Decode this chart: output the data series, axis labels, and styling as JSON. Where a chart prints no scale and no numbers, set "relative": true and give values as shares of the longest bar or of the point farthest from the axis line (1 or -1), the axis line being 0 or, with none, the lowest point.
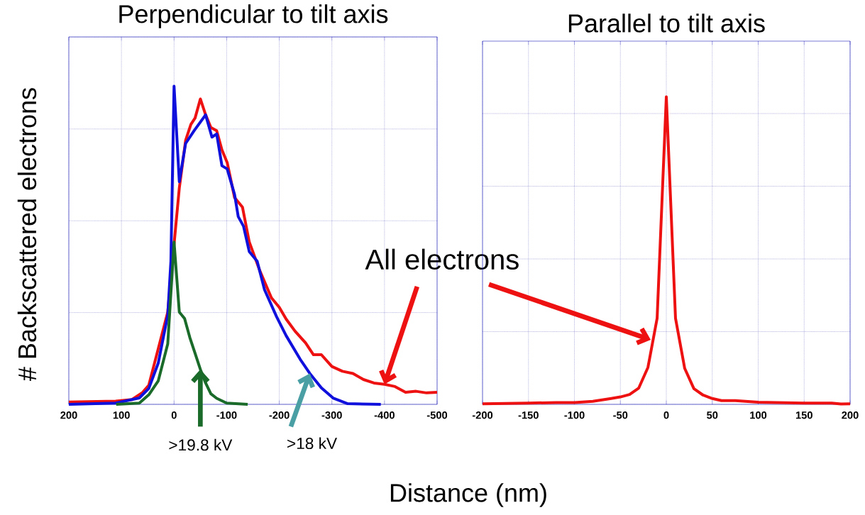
{
  "chart_data": [
    {
      "type": "line",
      "title": "Perpendicular to tilt axis",
      "ylabel": "# Backscattered electrons",
      "xlabel": "Distance (nm)",
      "relative": true,
      "grid": true,
      "xlim": [
        200,
        -500
      ],
      "xticks": [
        200,
        100,
        0,
        -100,
        -200,
        -300,
        -400,
        -500
      ],
      "series": [
        {
          "color": "#ee1111",
          "x": [
            200,
            111,
            80,
            60,
            48,
            12,
            -10,
            -22,
            -32,
            -40,
            -50,
            -60,
            -70,
            -81,
            -91,
            -101,
            -115,
            -130,
            -143,
            -163,
            -185,
            -200,
            -213,
            -230,
            -250,
            -265,
            -280,
            -300,
            -320,
            -340,
            -360,
            -380,
            -400,
            -420,
            -440,
            -460,
            -480,
            -500
          ],
          "values": [
            0.007,
            0.01,
            0.015,
            0.037,
            0.06,
            0.29,
            0.68,
            0.83,
            0.88,
            0.9,
            0.96,
            0.91,
            0.87,
            0.86,
            0.8,
            0.76,
            0.65,
            0.62,
            0.51,
            0.42,
            0.335,
            0.305,
            0.268,
            0.23,
            0.193,
            0.156,
            0.156,
            0.119,
            0.104,
            0.097,
            0.078,
            0.067,
            0.063,
            0.056,
            0.038,
            0.041,
            0.036,
            0.038
          ]
        },
        {
          "color": "#1010dd",
          "x": [
            200,
            111,
            66,
            48,
            30,
            12,
            6,
            0,
            -10,
            -22,
            -38,
            -60,
            -72,
            -81,
            -91,
            -101,
            -115,
            -122,
            -132,
            -143,
            -158,
            -172,
            -195,
            -213,
            -240,
            -258,
            -280,
            -303,
            -330,
            -393
          ],
          "values": [
            0.0,
            0.004,
            0.02,
            0.05,
            0.13,
            0.28,
            0.45,
            1.0,
            0.7,
            0.82,
            0.86,
            0.91,
            0.84,
            0.85,
            0.75,
            0.74,
            0.66,
            0.59,
            0.56,
            0.48,
            0.45,
            0.36,
            0.275,
            0.216,
            0.141,
            0.097,
            0.052,
            0.019,
            0.002,
            0.0
          ]
        },
        {
          "color": "#1a6a2a",
          "x": [
            110,
            66,
            48,
            30,
            12,
            0,
            -10,
            -20,
            -30,
            -40,
            -50,
            -60,
            -70,
            -81,
            -100,
            -140
          ],
          "values": [
            0.0,
            0.004,
            0.03,
            0.074,
            0.19,
            0.51,
            0.29,
            0.27,
            0.21,
            0.16,
            0.11,
            0.067,
            0.033,
            0.019,
            0.004,
            0.0
          ]
        }
      ],
      "annotations": [
        {
          "text": ">19.8 kV",
          "x": -50,
          "y": 0.11
        },
        {
          "text": ">18 kV",
          "x": -258,
          "y": 0.097
        },
        {
          "text": "All electrons",
          "x": -400,
          "y": 0.063
        }
      ]
    },
    {
      "type": "line",
      "title": "Parallel to tilt axis",
      "relative": true,
      "grid": true,
      "xlim": [
        -200,
        200
      ],
      "xticks": [
        -200,
        -150,
        -100,
        -50,
        0,
        50,
        100,
        150,
        200
      ],
      "series": [
        {
          "color": "#ee1111",
          "x": [
            -200,
            -150,
            -120,
            -100,
            -80,
            -60,
            -50,
            -40,
            -30,
            -20,
            -10,
            0,
            10,
            20,
            30,
            40,
            50,
            60,
            75,
            100,
            150,
            180,
            190,
            200
          ],
          "values": [
            0.002,
            0.004,
            0.006,
            0.006,
            0.01,
            0.019,
            0.024,
            0.032,
            0.053,
            0.12,
            0.28,
            1.0,
            0.28,
            0.117,
            0.051,
            0.03,
            0.019,
            0.012,
            0.012,
            0.007,
            0.004,
            0.004,
            0.001,
            0.002
          ]
        }
      ]
    }
  ]
}
